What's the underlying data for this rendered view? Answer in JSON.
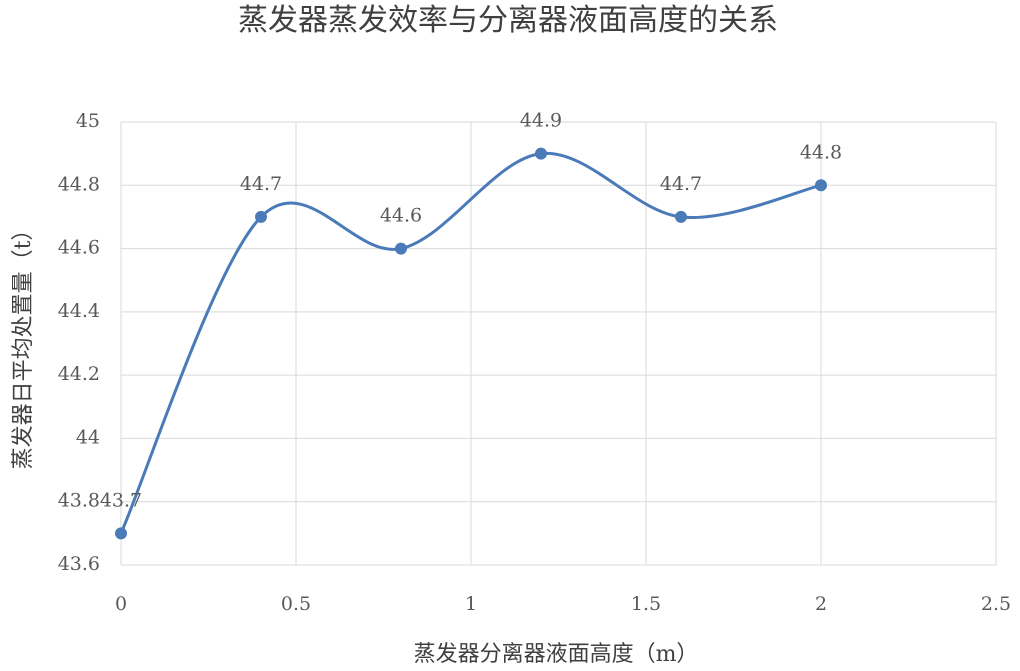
{
  "chart_data": {
    "type": "scatter",
    "line": "smooth",
    "markers": true,
    "data_labels": true,
    "title": "蒸发器蒸发效率与分离器液面高度的关系",
    "x_label": "蒸发器分离器液面高度（m）",
    "y_label": "蒸发器日平均处置量（t）",
    "x": [
      0,
      0.4,
      0.8,
      1.2,
      1.6,
      2
    ],
    "values": [
      43.7,
      44.7,
      44.6,
      44.9,
      44.7,
      44.8
    ],
    "color": "#4a7ab8",
    "xlim": [
      0,
      2.5
    ],
    "xticks": [
      0,
      0.5,
      1,
      1.5,
      2,
      2.5
    ],
    "ylim": [
      43.6,
      45
    ],
    "yticks": [
      43.6,
      43.8,
      44,
      44.2,
      44.4,
      44.6,
      44.8,
      45
    ],
    "grid": true
  }
}
